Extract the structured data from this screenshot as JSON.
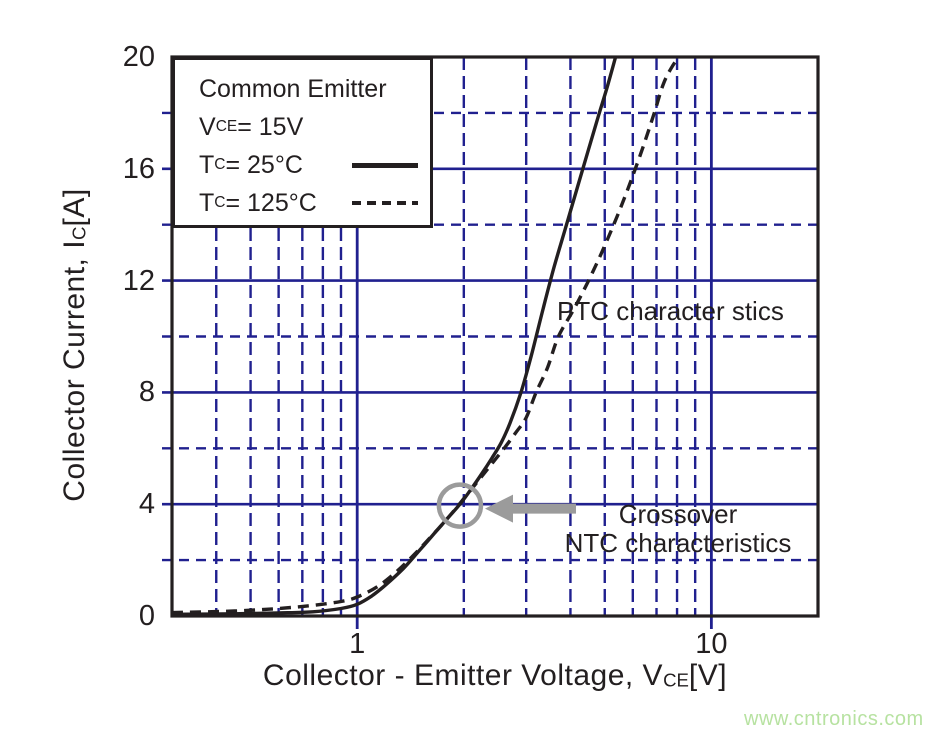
{
  "watermark": {
    "text": "www.cntronics.com",
    "color": "#b7e2a1"
  },
  "colors": {
    "grid": "#20208f",
    "curve": "#231f20",
    "frame": "#231f20",
    "annotation_gray": "#9b9b9b",
    "text": "#231f20"
  },
  "chart_data": {
    "type": "line",
    "x_scale": "log",
    "xlim": [
      0.3,
      20
    ],
    "ylim": [
      0,
      20
    ],
    "grid": "on",
    "xlabel": {
      "pre": "Collector - Emitter Voltage, V",
      "sub": "CE",
      "post": "[V]"
    },
    "ylabel": {
      "pre": "Collector Current, I",
      "sub": "C",
      "post": "[A]"
    },
    "x_ticks": [
      {
        "value": 1,
        "label": "1"
      },
      {
        "value": 10,
        "label": "10"
      }
    ],
    "y_ticks": [
      {
        "value": 0,
        "label": "0"
      },
      {
        "value": 4,
        "label": "4"
      },
      {
        "value": 8,
        "label": "8"
      },
      {
        "value": 12,
        "label": "12"
      },
      {
        "value": 16,
        "label": "16"
      },
      {
        "value": 20,
        "label": "20"
      }
    ],
    "x_grid_major": [
      1,
      10
    ],
    "x_grid_minor": [
      0.4,
      0.5,
      0.6,
      0.7,
      0.8,
      0.9,
      2,
      3,
      4,
      5,
      6,
      7,
      8,
      9
    ],
    "y_grid_major": [
      4,
      8,
      12,
      16
    ],
    "y_grid_minor": [
      2,
      6,
      10,
      14,
      18
    ],
    "legend": {
      "title": "Common Emitter",
      "condition": {
        "pre": "V",
        "sub": "CE",
        "post": " = 15V"
      },
      "entries": [
        {
          "pre": "T",
          "sub": "C",
          "post": " = 25°C",
          "style": "solid"
        },
        {
          "pre": "T",
          "sub": "C",
          "post": " = 125°C",
          "style": "dashed"
        }
      ]
    },
    "series": [
      {
        "name": "TC = 25C",
        "style": "solid",
        "points": [
          [
            0.3,
            0.06
          ],
          [
            0.45,
            0.08
          ],
          [
            0.6,
            0.11
          ],
          [
            0.75,
            0.15
          ],
          [
            0.9,
            0.27
          ],
          [
            1.0,
            0.42
          ],
          [
            1.1,
            0.72
          ],
          [
            1.2,
            1.1
          ],
          [
            1.35,
            1.7
          ],
          [
            1.5,
            2.35
          ],
          [
            1.65,
            2.95
          ],
          [
            1.8,
            3.5
          ],
          [
            1.95,
            4.0
          ],
          [
            2.1,
            4.55
          ],
          [
            2.25,
            5.1
          ],
          [
            2.4,
            5.65
          ],
          [
            2.55,
            6.2
          ],
          [
            2.7,
            6.9
          ],
          [
            2.9,
            8.0
          ],
          [
            3.1,
            9.3
          ],
          [
            3.35,
            11.0
          ],
          [
            3.6,
            12.5
          ],
          [
            3.9,
            14.0
          ],
          [
            4.2,
            15.4
          ],
          [
            4.5,
            16.7
          ],
          [
            4.8,
            17.9
          ],
          [
            5.1,
            19.0
          ],
          [
            5.5,
            20.5
          ]
        ]
      },
      {
        "name": "TC = 125C",
        "style": "dashed",
        "points": [
          [
            0.3,
            0.12
          ],
          [
            0.45,
            0.18
          ],
          [
            0.6,
            0.27
          ],
          [
            0.75,
            0.38
          ],
          [
            0.9,
            0.52
          ],
          [
            1.0,
            0.68
          ],
          [
            1.15,
            1.08
          ],
          [
            1.3,
            1.62
          ],
          [
            1.45,
            2.2
          ],
          [
            1.6,
            2.78
          ],
          [
            1.75,
            3.32
          ],
          [
            1.9,
            3.85
          ],
          [
            2.0,
            4.2
          ],
          [
            2.2,
            4.85
          ],
          [
            2.4,
            5.45
          ],
          [
            2.6,
            6.0
          ],
          [
            2.8,
            6.55
          ],
          [
            3.0,
            7.1
          ],
          [
            3.2,
            8.0
          ],
          [
            3.45,
            8.9
          ],
          [
            3.7,
            10.0
          ],
          [
            4.1,
            11.0
          ],
          [
            4.5,
            12.0
          ],
          [
            4.9,
            13.0
          ],
          [
            5.3,
            14.0
          ],
          [
            5.7,
            15.0
          ],
          [
            6.1,
            16.0
          ],
          [
            6.5,
            17.0
          ],
          [
            6.9,
            18.0
          ],
          [
            7.3,
            19.0
          ],
          [
            7.7,
            19.6
          ],
          [
            8.2,
            20.1
          ],
          [
            8.7,
            20.45
          ]
        ]
      }
    ],
    "annotations": {
      "ptc_label": "PTC character stics",
      "crossover_line1": "Crossover",
      "crossover_line2": "NTC characteristics",
      "crossover_point": {
        "v": 1.95,
        "i": 3.95,
        "radius_px": 21
      }
    }
  }
}
